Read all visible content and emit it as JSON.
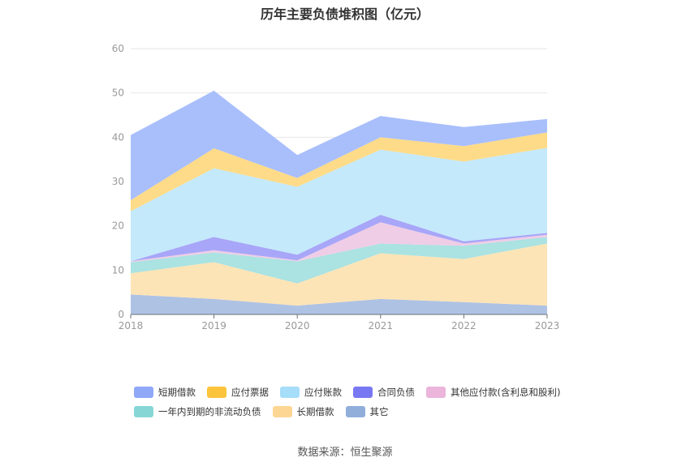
{
  "chart_data": {
    "type": "area",
    "stacked": true,
    "title": "历年主要负债堆积图（亿元）",
    "categories": [
      "2018",
      "2019",
      "2020",
      "2021",
      "2022",
      "2023"
    ],
    "ylim": [
      0,
      60
    ],
    "yticks": [
      0,
      10,
      20,
      30,
      40,
      50,
      60
    ],
    "grid": true,
    "legend_position": "bottom",
    "series": [
      {
        "name": "其它",
        "color": "#aec2e4",
        "values": [
          4.5,
          3.5,
          2.0,
          3.5,
          2.8,
          2.0
        ]
      },
      {
        "name": "长期借款",
        "color": "#fde4b6",
        "values": [
          4.8,
          8.3,
          5.0,
          10.3,
          9.7,
          14.0
        ]
      },
      {
        "name": "一年内到期的非流动负债",
        "color": "#abe2e2",
        "values": [
          2.5,
          2.2,
          5.0,
          2.2,
          3.0,
          1.5
        ]
      },
      {
        "name": "其他应付款(含利息和股利)",
        "color": "#efcde6",
        "values": [
          0.2,
          0.5,
          0.2,
          4.8,
          0.5,
          0.5
        ]
      },
      {
        "name": "合同负债",
        "color": "#a8a6f8",
        "values": [
          0.0,
          3.0,
          1.3,
          1.7,
          0.5,
          0.4
        ]
      },
      {
        "name": "应付账款",
        "color": "#c4e9fb",
        "values": [
          11.3,
          15.5,
          15.3,
          14.7,
          18.0,
          19.2
        ]
      },
      {
        "name": "应付票据",
        "color": "#fedb88",
        "values": [
          2.5,
          4.5,
          2.0,
          2.8,
          3.5,
          3.5
        ]
      },
      {
        "name": "短期借款",
        "color": "#a9bffc",
        "values": [
          14.7,
          13.0,
          5.2,
          4.8,
          4.3,
          3.0
        ]
      }
    ],
    "legend_rows": [
      [
        {
          "name": "短期借款",
          "color": "#8fa8f7"
        },
        {
          "name": "应付票据",
          "color": "#fcc43d"
        },
        {
          "name": "应付账款",
          "color": "#a6ddf8"
        },
        {
          "name": "合同负债",
          "color": "#7878f2"
        },
        {
          "name": "其他应付款(含利息和股利)",
          "color": "#ebb5dc"
        }
      ],
      [
        {
          "name": "一年内到期的非流动负债",
          "color": "#87d6d6"
        },
        {
          "name": "长期借款",
          "color": "#fdd693"
        },
        {
          "name": "其它",
          "color": "#91aedb"
        }
      ]
    ]
  },
  "source": "数据来源：恒生聚源"
}
